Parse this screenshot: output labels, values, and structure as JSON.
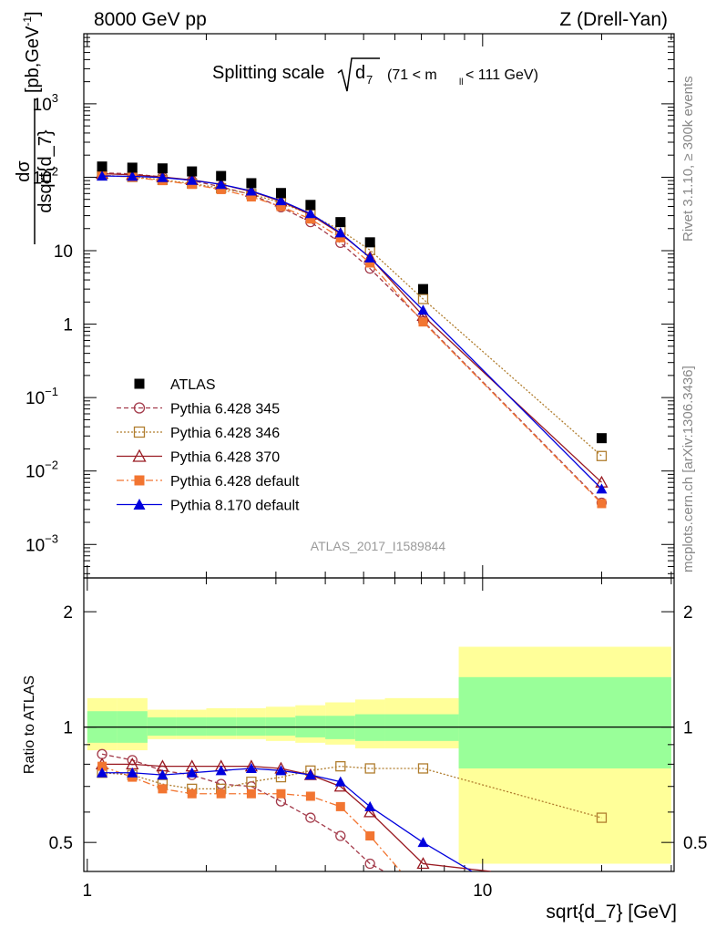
{
  "header": {
    "left": "8000 GeV pp",
    "right": "Z (Drell-Yan)"
  },
  "main_title": {
    "prefix": "Splitting scale",
    "var": "d",
    "var_sub": "7",
    "cut_a": "(71 < m",
    "cut_sub": "ll",
    "cut_b": " < 111 GeV)"
  },
  "side_labels": {
    "rivet": "Rivet 3.1.10, ≥ 300k events",
    "mcplots": "mcplots.cern.ch [arXiv:1306.3436]"
  },
  "watermark": "ATLAS_2017_I1589844",
  "ylabel_top": {
    "num": "dσ",
    "den": "dsqrt{d_7}",
    "unit": "[pb,GeV",
    "unit_sup": "-1",
    "unit_end": "]"
  },
  "ylabel_bottom": "Ratio to ATLAS",
  "xlabel": "sqrt{d_7} [GeV]",
  "y_ticks_top": [
    {
      "base": "10",
      "exp": "3"
    },
    {
      "base": "10",
      "exp": "2"
    },
    {
      "base": "10",
      "exp": ""
    },
    {
      "base": "1",
      "exp": ""
    },
    {
      "base": "10",
      "exp": "−1"
    },
    {
      "base": "10",
      "exp": "−2"
    },
    {
      "base": "10",
      "exp": "−3"
    }
  ],
  "y_ticks_bottom": [
    "2",
    "1",
    "0.5",
    "2",
    "1",
    "0.5"
  ],
  "x_ticks": [
    "1",
    "10"
  ],
  "legend": [
    {
      "label": "ATLAS"
    },
    {
      "label": "Pythia 6.428 345"
    },
    {
      "label": "Pythia 6.428 346"
    },
    {
      "label": "Pythia 6.428 370"
    },
    {
      "label": "Pythia 6.428 default"
    },
    {
      "label": "Pythia 8.170 default"
    }
  ],
  "chart_data": {
    "type": "scatter",
    "x_scale": "log",
    "y_scale_top": "log",
    "y_scale_bottom": "log",
    "xlim": [
      0.98,
      30.5
    ],
    "ylim_top": [
      0.00035,
      9000
    ],
    "ylim_bottom": [
      0.42,
      2.45
    ],
    "x": [
      1.09,
      1.3,
      1.55,
      1.84,
      2.18,
      2.6,
      3.09,
      3.67,
      4.37,
      5.19,
      7.07,
      20.0
    ],
    "x_bins": [
      [
        1.0,
        1.19
      ],
      [
        1.19,
        1.42
      ],
      [
        1.42,
        1.68
      ],
      [
        1.68,
        2.0
      ],
      [
        2.0,
        2.38
      ],
      [
        2.38,
        2.83
      ],
      [
        2.83,
        3.36
      ],
      [
        3.36,
        4.0
      ],
      [
        4.0,
        4.76
      ],
      [
        4.76,
        5.66
      ],
      [
        5.66,
        8.7
      ],
      [
        8.7,
        30.0
      ]
    ],
    "atlas": [
      140,
      135,
      132,
      120,
      104,
      83,
      61,
      42,
      24.5,
      13,
      3.0,
      0.028
    ],
    "band_stat": [
      [
        0.91,
        1.1
      ],
      [
        0.91,
        1.1
      ],
      [
        0.95,
        1.06
      ],
      [
        0.95,
        1.06
      ],
      [
        0.95,
        1.06
      ],
      [
        0.95,
        1.06
      ],
      [
        0.95,
        1.06
      ],
      [
        0.94,
        1.07
      ],
      [
        0.93,
        1.07
      ],
      [
        0.92,
        1.08
      ],
      [
        0.92,
        1.08
      ],
      [
        0.78,
        1.35
      ]
    ],
    "band_total": [
      [
        0.87,
        1.19
      ],
      [
        0.87,
        1.19
      ],
      [
        0.93,
        1.11
      ],
      [
        0.93,
        1.11
      ],
      [
        0.93,
        1.12
      ],
      [
        0.93,
        1.12
      ],
      [
        0.92,
        1.13
      ],
      [
        0.91,
        1.14
      ],
      [
        0.9,
        1.16
      ],
      [
        0.88,
        1.18
      ],
      [
        0.88,
        1.19
      ],
      [
        0.44,
        1.62
      ]
    ],
    "ratio_end": [
      {
        "x": 8.1,
        "y": 0.42
      },
      {
        "x": 7.4,
        "y": 0.42
      },
      {
        "x": 10.5,
        "y": 0.42
      },
      {
        "x": 8.2,
        "y": 0.42
      },
      {
        "x": 9.4,
        "y": 0.42
      }
    ],
    "series": [
      {
        "name": "Pythia 6.428 345",
        "color": "#a33a4a",
        "dash": "5,3",
        "marker": "open-circle",
        "values": [
          115,
          111,
          101,
          90,
          74,
          58,
          39,
          24.5,
          12.8,
          5.7,
          1.1,
          0.0037
        ],
        "ratio": [
          0.85,
          0.82,
          0.77,
          0.75,
          0.71,
          0.7,
          0.64,
          0.58,
          0.52,
          0.44,
          0.37,
          null
        ]
      },
      {
        "name": "Pythia 6.428 346",
        "color": "#b07d2e",
        "dash": "2,2",
        "marker": "open-square",
        "values": [
          106,
          101,
          92,
          82,
          71,
          59,
          45,
          31,
          19,
          10.2,
          2.2,
          0.016
        ],
        "ratio": [
          0.76,
          0.75,
          0.71,
          0.69,
          0.69,
          0.72,
          0.74,
          0.77,
          0.79,
          0.78,
          0.78,
          0.58
        ]
      },
      {
        "name": "Pythia 6.428 370",
        "color": "#991a22",
        "dash": "",
        "marker": "open-triangle",
        "values": [
          112,
          108,
          101,
          92,
          80,
          64,
          47,
          31,
          17,
          8.1,
          1.3,
          0.007
        ],
        "ratio": [
          0.8,
          0.8,
          0.79,
          0.79,
          0.79,
          0.79,
          0.78,
          0.75,
          0.7,
          0.6,
          0.44,
          null
        ]
      },
      {
        "name": "Pythia 6.428 default",
        "color": "#f27531",
        "dash": "8,3,2,3",
        "marker": "filled-square",
        "values": [
          107,
          100,
          90,
          80,
          68,
          54,
          40,
          27,
          15,
          6.8,
          1.07,
          0.0036
        ],
        "ratio": [
          0.79,
          0.74,
          0.69,
          0.67,
          0.67,
          0.67,
          0.67,
          0.66,
          0.62,
          0.52,
          0.36,
          null
        ]
      },
      {
        "name": "Pythia 8.170 default",
        "color": "#0000dd",
        "dash": "",
        "marker": "filled-triangle",
        "values": [
          104,
          103,
          99,
          91,
          80,
          65,
          48,
          32,
          17.5,
          8.0,
          1.55,
          0.0057
        ],
        "ratio": [
          0.76,
          0.76,
          0.75,
          0.76,
          0.77,
          0.78,
          0.77,
          0.75,
          0.72,
          0.62,
          0.5,
          null
        ]
      }
    ]
  }
}
